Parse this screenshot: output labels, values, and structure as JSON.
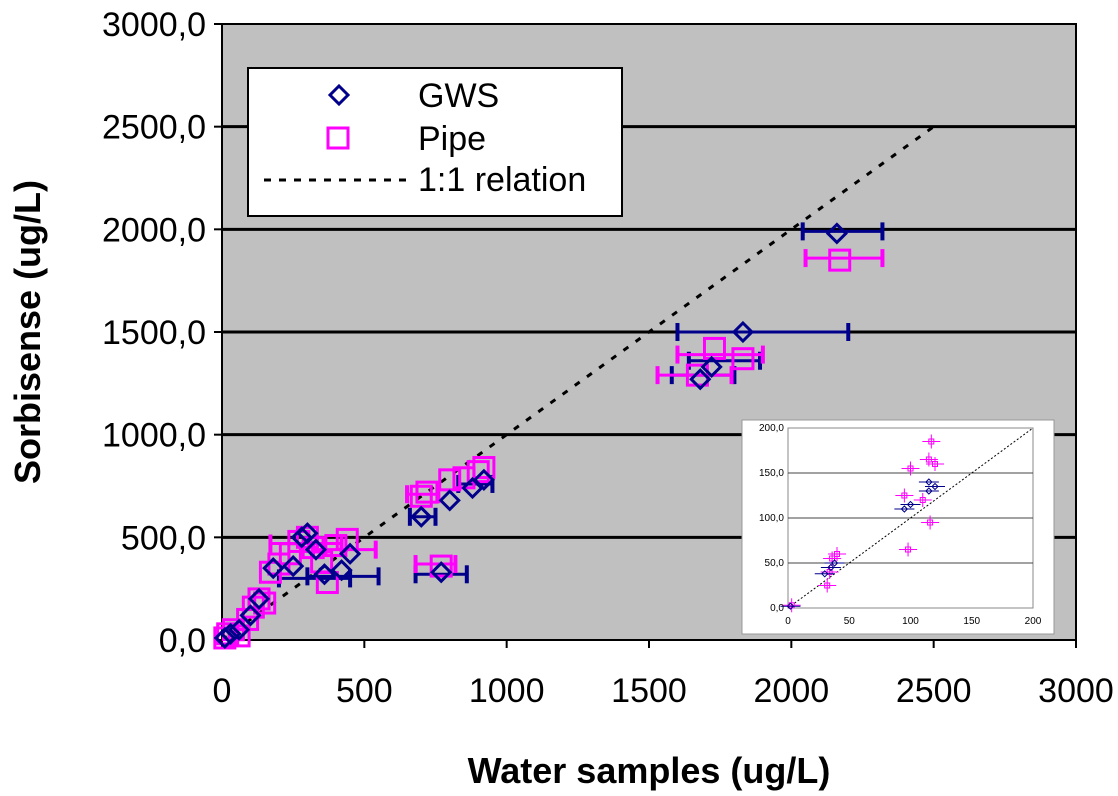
{
  "chart_data": [
    {
      "type": "scatter",
      "title": "",
      "xlabel": "Water samples (ug/L)",
      "ylabel": "Sorbisense (ug/L)",
      "xlim": [
        0,
        3000
      ],
      "ylim": [
        0,
        3000
      ],
      "x_ticks": [
        "0",
        "500",
        "1000",
        "1500",
        "2000",
        "2500",
        "3000"
      ],
      "y_ticks": [
        "0,0",
        "500,0",
        "1000,0",
        "1500,0",
        "2000,0",
        "2500,0",
        "3000,0"
      ],
      "grid": "horizontal",
      "legend_position": "top-left",
      "background": "#c0c0c0",
      "series": [
        {
          "name": "GWS",
          "marker": "diamond",
          "color": "#00008b",
          "points": [
            {
              "x": 10,
              "y": 10
            },
            {
              "x": 30,
              "y": 30
            },
            {
              "x": 60,
              "y": 50
            },
            {
              "x": 100,
              "y": 120
            },
            {
              "x": 130,
              "y": 200
            },
            {
              "x": 180,
              "y": 350
            },
            {
              "x": 250,
              "y": 360
            },
            {
              "x": 280,
              "y": 500
            },
            {
              "x": 300,
              "y": 520
            },
            {
              "x": 330,
              "y": 440
            },
            {
              "x": 360,
              "y": 320
            },
            {
              "x": 420,
              "y": 340
            },
            {
              "x": 450,
              "y": 420
            },
            {
              "x": 700,
              "y": 600
            },
            {
              "x": 770,
              "y": 330
            },
            {
              "x": 800,
              "y": 680
            },
            {
              "x": 880,
              "y": 740
            },
            {
              "x": 920,
              "y": 780
            },
            {
              "x": 1680,
              "y": 1270
            },
            {
              "x": 1720,
              "y": 1330
            },
            {
              "x": 1830,
              "y": 1500
            },
            {
              "x": 2160,
              "y": 1980
            }
          ],
          "x_error": [
            {
              "x": 300,
              "y": 300,
              "lo": 200,
              "hi": 450
            },
            {
              "x": 400,
              "y": 310,
              "lo": 300,
              "hi": 550
            },
            {
              "x": 700,
              "y": 600,
              "lo": 660,
              "hi": 750
            },
            {
              "x": 770,
              "y": 320,
              "lo": 680,
              "hi": 860
            },
            {
              "x": 880,
              "y": 760,
              "lo": 830,
              "hi": 950
            },
            {
              "x": 1700,
              "y": 1290,
              "lo": 1580,
              "hi": 1800
            },
            {
              "x": 1750,
              "y": 1360,
              "lo": 1640,
              "hi": 1890
            },
            {
              "x": 1830,
              "y": 1500,
              "lo": 1600,
              "hi": 2200
            },
            {
              "x": 2160,
              "y": 1990,
              "lo": 2040,
              "hi": 2320
            }
          ]
        },
        {
          "name": "Pipe",
          "marker": "square",
          "color": "#ff00ff",
          "points": [
            {
              "x": 10,
              "y": 10
            },
            {
              "x": 20,
              "y": 30
            },
            {
              "x": 40,
              "y": 50
            },
            {
              "x": 60,
              "y": 20
            },
            {
              "x": 90,
              "y": 100
            },
            {
              "x": 110,
              "y": 160
            },
            {
              "x": 130,
              "y": 200
            },
            {
              "x": 150,
              "y": 180
            },
            {
              "x": 170,
              "y": 330
            },
            {
              "x": 200,
              "y": 370
            },
            {
              "x": 240,
              "y": 420
            },
            {
              "x": 270,
              "y": 480
            },
            {
              "x": 300,
              "y": 500
            },
            {
              "x": 320,
              "y": 450
            },
            {
              "x": 350,
              "y": 380
            },
            {
              "x": 370,
              "y": 280
            },
            {
              "x": 400,
              "y": 460
            },
            {
              "x": 440,
              "y": 490
            },
            {
              "x": 700,
              "y": 700
            },
            {
              "x": 720,
              "y": 720
            },
            {
              "x": 770,
              "y": 360
            },
            {
              "x": 800,
              "y": 780
            },
            {
              "x": 850,
              "y": 790
            },
            {
              "x": 900,
              "y": 820
            },
            {
              "x": 920,
              "y": 840
            },
            {
              "x": 1670,
              "y": 1290
            },
            {
              "x": 1730,
              "y": 1420
            },
            {
              "x": 1830,
              "y": 1370
            },
            {
              "x": 2170,
              "y": 1850
            }
          ],
          "x_error": [
            {
              "x": 280,
              "y": 470,
              "lo": 170,
              "hi": 420
            },
            {
              "x": 400,
              "y": 440,
              "lo": 320,
              "hi": 540
            },
            {
              "x": 700,
              "y": 710,
              "lo": 650,
              "hi": 760
            },
            {
              "x": 760,
              "y": 370,
              "lo": 680,
              "hi": 820
            },
            {
              "x": 1670,
              "y": 1290,
              "lo": 1530,
              "hi": 1790
            },
            {
              "x": 1760,
              "y": 1390,
              "lo": 1600,
              "hi": 1900
            },
            {
              "x": 2170,
              "y": 1860,
              "lo": 2050,
              "hi": 2320
            }
          ]
        },
        {
          "name": "1:1 relation",
          "type": "line",
          "style": "dotted",
          "color": "#000000",
          "x": [
            0,
            2500
          ],
          "y": [
            0,
            2500
          ]
        }
      ],
      "inset": {
        "xlim": [
          0,
          200
        ],
        "ylim": [
          0,
          200
        ],
        "x_ticks": [
          "0",
          "50",
          "100",
          "150",
          "200"
        ],
        "y_ticks": [
          "0,0",
          "50,0",
          "100,0",
          "150,0",
          "200,0"
        ],
        "gws_points": [
          {
            "x": 2,
            "y": 2
          },
          {
            "x": 30,
            "y": 38
          },
          {
            "x": 35,
            "y": 45
          },
          {
            "x": 38,
            "y": 50
          },
          {
            "x": 95,
            "y": 110
          },
          {
            "x": 100,
            "y": 115
          },
          {
            "x": 115,
            "y": 130
          },
          {
            "x": 120,
            "y": 135
          },
          {
            "x": 115,
            "y": 140
          }
        ],
        "pipe_points": [
          {
            "x": 3,
            "y": 3
          },
          {
            "x": 32,
            "y": 25
          },
          {
            "x": 34,
            "y": 40
          },
          {
            "x": 36,
            "y": 55
          },
          {
            "x": 40,
            "y": 60
          },
          {
            "x": 98,
            "y": 65
          },
          {
            "x": 95,
            "y": 125
          },
          {
            "x": 100,
            "y": 155
          },
          {
            "x": 110,
            "y": 120
          },
          {
            "x": 115,
            "y": 165
          },
          {
            "x": 117,
            "y": 185
          },
          {
            "x": 120,
            "y": 160
          },
          {
            "x": 116,
            "y": 95
          }
        ]
      }
    }
  ]
}
